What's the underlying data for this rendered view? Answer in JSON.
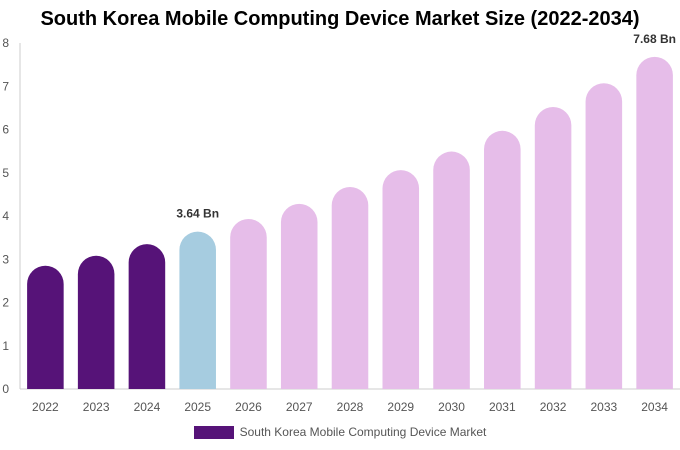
{
  "chart_data": {
    "type": "bar",
    "title": "South Korea Mobile Computing Device Market Size (2022-2034)",
    "categories": [
      "2022",
      "2023",
      "2024",
      "2025",
      "2026",
      "2027",
      "2028",
      "2029",
      "2030",
      "2031",
      "2032",
      "2033",
      "2034"
    ],
    "series": [
      {
        "name": "South Korea Mobile Computing Device Market",
        "values": [
          2.85,
          3.08,
          3.35,
          3.64,
          3.93,
          4.28,
          4.67,
          5.06,
          5.49,
          5.97,
          6.52,
          7.07,
          7.68
        ]
      }
    ],
    "data_labels": [
      {
        "index": 3,
        "text": "3.64 Bn"
      },
      {
        "index": 12,
        "text": "7.68 Bn"
      }
    ],
    "ylim": [
      0,
      8
    ],
    "yticks": [
      0,
      1,
      2,
      3,
      4,
      5,
      6,
      7,
      8
    ],
    "grid": false,
    "legend_position": "bottom",
    "colors": {
      "historical": "#561378",
      "current": "#a6cce0",
      "forecast": "#e6bde9",
      "axis": "#cccccc"
    },
    "bar_color_groups": [
      "historical",
      "historical",
      "historical",
      "current",
      "forecast",
      "forecast",
      "forecast",
      "forecast",
      "forecast",
      "forecast",
      "forecast",
      "forecast",
      "forecast"
    ]
  }
}
